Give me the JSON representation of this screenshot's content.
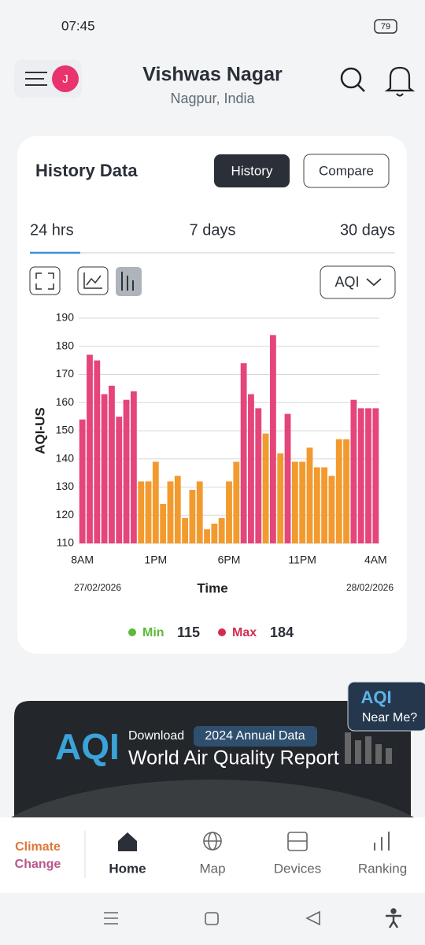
{
  "status_bar": {
    "time": "07:45",
    "battery": "79"
  },
  "header": {
    "avatar": "J",
    "title": "Vishwas Nagar",
    "subtitle": "Nagpur, India"
  },
  "card": {
    "title": "History Data",
    "buttons": [
      "History",
      "Compare"
    ],
    "tabs": [
      "24 hrs",
      "7 days",
      "30 days"
    ],
    "dropdown": "AQI"
  },
  "chart_data": {
    "type": "bar",
    "y_label": "AQI-US",
    "x_label": "Time",
    "x_start_date": "27/02/2026",
    "x_end_date": "28/02/2026",
    "categories": [
      "8AM",
      null,
      null,
      null,
      null,
      null,
      null,
      null,
      null,
      null,
      "1PM",
      null,
      null,
      null,
      null,
      null,
      null,
      null,
      null,
      null,
      "6PM",
      null,
      null,
      null,
      null,
      null,
      null,
      null,
      null,
      null,
      "11PM",
      null,
      null,
      null,
      null,
      null,
      null,
      null,
      null,
      null,
      "4AM"
    ],
    "values": [
      154,
      177,
      175,
      163,
      166,
      155,
      161,
      164,
      132,
      132,
      139,
      124,
      132,
      134,
      119,
      129,
      132,
      115,
      117,
      119,
      132,
      139,
      174,
      163,
      158,
      149,
      184,
      142,
      156,
      139,
      139,
      144,
      137,
      137,
      134,
      147,
      147,
      161,
      158,
      158,
      158
    ],
    "colors": [
      "#e5457a",
      "#e5457a",
      "#e5457a",
      "#e5457a",
      "#e5457a",
      "#e5457a",
      "#e5457a",
      "#e5457a",
      "#f39a2e",
      "#f39a2e",
      "#f39a2e",
      "#f39a2e",
      "#f39a2e",
      "#f39a2e",
      "#f39a2e",
      "#f39a2e",
      "#f39a2e",
      "#f39a2e",
      "#f39a2e",
      "#f39a2e",
      "#f39a2e",
      "#f39a2e",
      "#e5457a",
      "#e5457a",
      "#e5457a",
      "#f39a2e",
      "#e5457a",
      "#f39a2e",
      "#e5457a",
      "#f39a2e",
      "#f39a2e",
      "#f39a2e",
      "#f39a2e",
      "#f39a2e",
      "#f39a2e",
      "#f39a2e",
      "#f39a2e",
      "#e5457a",
      "#e5457a",
      "#e5457a",
      "#e5457a"
    ],
    "ylim": [
      110,
      190
    ],
    "yticks": [
      110,
      120,
      130,
      140,
      150,
      160,
      170,
      180,
      190
    ],
    "grid": true
  },
  "summary": {
    "min_label": "Min",
    "min_value": 115,
    "max_label": "Max",
    "max_value": 184
  },
  "banner": {
    "logo": "AQI",
    "download": "Download",
    "badge": "2024 Annual Data",
    "headline": "World Air Quality Report",
    "near_me": "Near Me?",
    "near_me_logo": "AQI"
  },
  "nav": {
    "brand": [
      "Climate",
      "Change"
    ],
    "items": [
      "Home",
      "Map",
      "Devices",
      "Ranking"
    ]
  }
}
